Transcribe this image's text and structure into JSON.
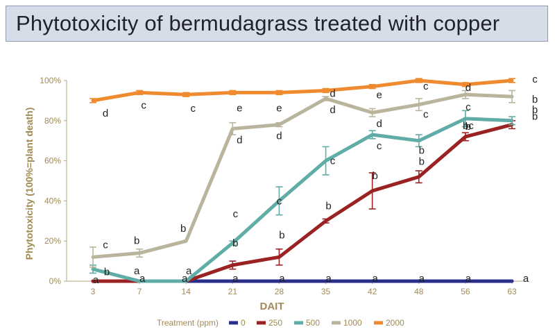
{
  "chart_data": {
    "type": "line",
    "title": "Phytotoxicity of bermudagrass treated with copper",
    "xlabel": "DAIT",
    "ylabel": "Phytotoxicity (100%=plant death)",
    "categories": [
      "3",
      "7",
      "14",
      "21",
      "28",
      "35",
      "42",
      "48",
      "56",
      "63"
    ],
    "ylim": [
      0,
      100
    ],
    "yticks": [
      0,
      20,
      40,
      60,
      80,
      100
    ],
    "ytick_labels": [
      "0%",
      "20%",
      "40%",
      "60%",
      "80%",
      "100%"
    ],
    "grid": false,
    "legend_position": "bottom",
    "legend_title": "Treatment (ppm)",
    "colors": {
      "axis_text": "#a08a54",
      "axis_title": "#a08a54",
      "letters": "#222222"
    },
    "series": [
      {
        "name": "0",
        "color": "#2a2f8c",
        "values": [
          0,
          0,
          0,
          0,
          0,
          0,
          0,
          0,
          0,
          0
        ],
        "errors": [
          0,
          0,
          0,
          0,
          0,
          0,
          0,
          0,
          0,
          0
        ],
        "letters": [
          "a",
          "a",
          "a",
          "a",
          "a",
          "a",
          "a",
          "a",
          "a",
          "a"
        ],
        "letter_offsets": [
          [
            4,
            -2
          ],
          [
            4,
            -4
          ],
          [
            -2,
            -4
          ],
          [
            4,
            -4
          ],
          [
            4,
            -4
          ],
          [
            4,
            -4
          ],
          [
            4,
            -4
          ],
          [
            4,
            -4
          ],
          [
            4,
            -4
          ],
          [
            20,
            -4
          ]
        ]
      },
      {
        "name": "250",
        "color": "#9b2222",
        "values": [
          0,
          0,
          0,
          8,
          12,
          30,
          45,
          52,
          72,
          78
        ],
        "errors": [
          0,
          0,
          0,
          2,
          4,
          1,
          9,
          3,
          2,
          2
        ],
        "letters": [
          "",
          "",
          "",
          "b",
          "b",
          "b",
          "b",
          "b",
          "b",
          "b"
        ],
        "letter_offsets": [
          [
            0,
            0
          ],
          [
            0,
            0
          ],
          [
            0,
            0
          ],
          [
            4,
            -32
          ],
          [
            4,
            -32
          ],
          [
            4,
            -22
          ],
          [
            4,
            -22
          ],
          [
            4,
            -22
          ],
          [
            4,
            -15
          ],
          [
            33,
            -12
          ]
        ]
      },
      {
        "name": "500",
        "color": "#5fada6",
        "values": [
          6,
          0,
          0,
          19,
          40,
          60,
          73,
          70,
          81,
          80
        ],
        "errors": [
          2,
          0,
          0,
          1,
          7,
          7,
          2,
          3,
          4,
          2
        ],
        "letters": [
          "b",
          "a",
          "a",
          "c",
          "c",
          "c",
          "c",
          "b",
          "bc",
          "b"
        ],
        "letter_offsets": [
          [
            20,
            4
          ],
          [
            -4,
            -15
          ],
          [
            4,
            -15
          ],
          [
            4,
            -42
          ],
          [
            0,
            0
          ],
          [
            10,
            0
          ],
          [
            10,
            16
          ],
          [
            4,
            14
          ],
          [
            4,
            10
          ],
          [
            33,
            -16
          ]
        ]
      },
      {
        "name": "1000",
        "color": "#b9b49c",
        "values": [
          12,
          14,
          20,
          76,
          78,
          91,
          84,
          88,
          93,
          92
        ],
        "errors": [
          5,
          2,
          0,
          3,
          1,
          1,
          2,
          3,
          2,
          3
        ],
        "letters": [
          "c",
          "b",
          "b",
          "d",
          "d",
          "d",
          "d",
          "c",
          "c",
          "b"
        ],
        "letter_offsets": [
          [
            18,
            -18
          ],
          [
            -4,
            -18
          ],
          [
            -4,
            -18
          ],
          [
            10,
            16
          ],
          [
            0,
            16
          ],
          [
            10,
            16
          ],
          [
            10,
            16
          ],
          [
            10,
            14
          ],
          [
            4,
            18
          ],
          [
            33,
            4
          ]
        ]
      },
      {
        "name": "2000",
        "color": "#f08a2e",
        "values": [
          90,
          94,
          93,
          94,
          94,
          95,
          97,
          100,
          98,
          100
        ],
        "errors": [
          1,
          1,
          1,
          1,
          1,
          1,
          1,
          1,
          1,
          1
        ],
        "letters": [
          "d",
          "c",
          "c",
          "e",
          "e",
          "d",
          "e",
          "c",
          "d",
          "c"
        ],
        "letter_offsets": [
          [
            18,
            18
          ],
          [
            6,
            18
          ],
          [
            10,
            20
          ],
          [
            10,
            22
          ],
          [
            0,
            22
          ],
          [
            10,
            4
          ],
          [
            10,
            12
          ],
          [
            10,
            8
          ],
          [
            4,
            4
          ],
          [
            33,
            -2
          ]
        ]
      }
    ]
  }
}
